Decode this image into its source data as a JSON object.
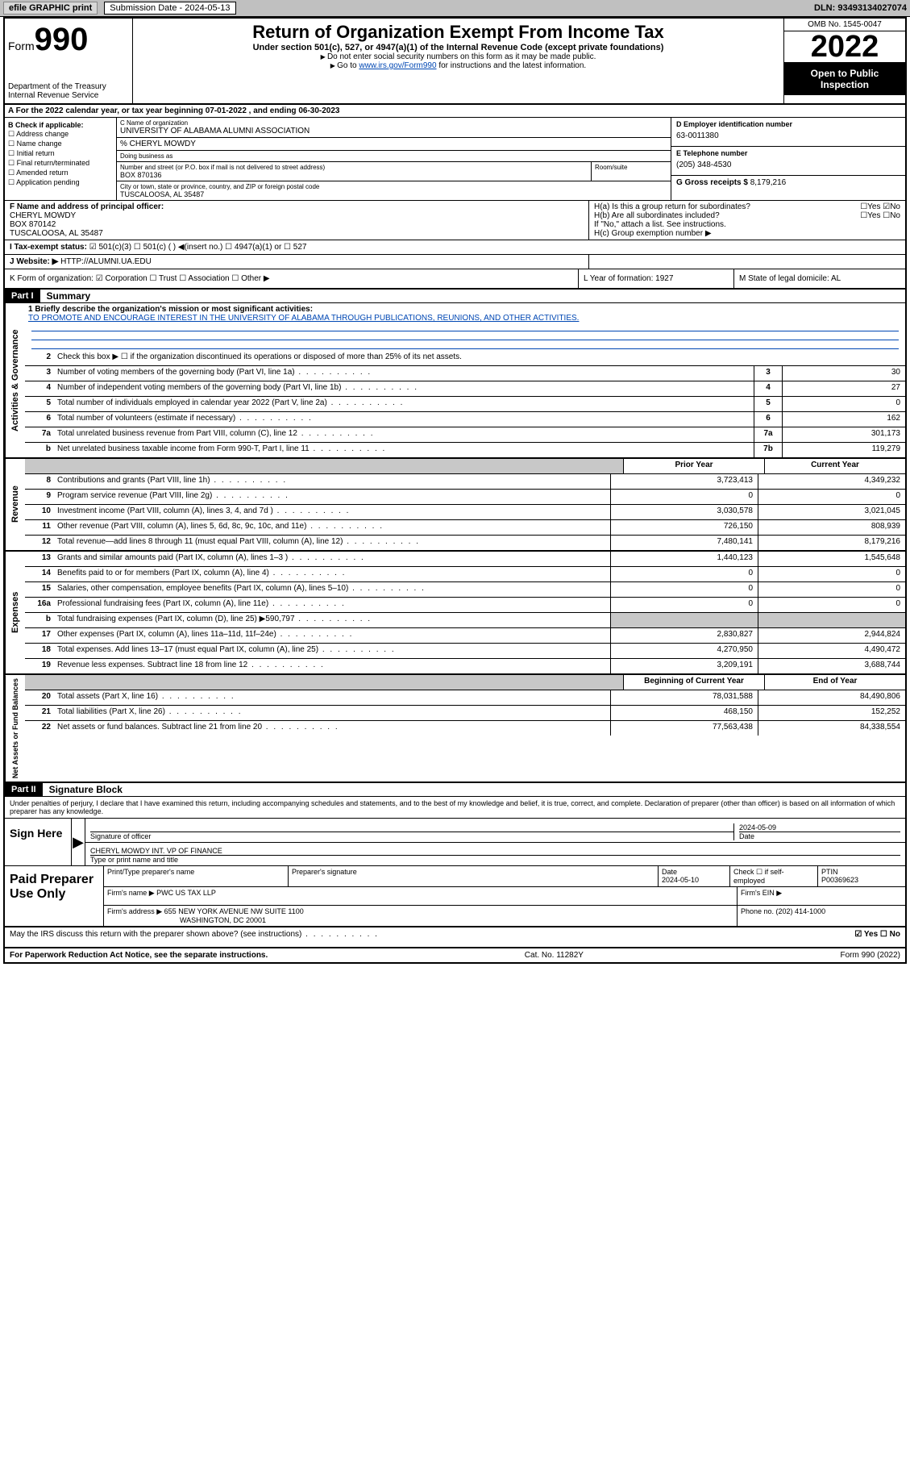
{
  "topbar": {
    "efile_label": "efile GRAPHIC print",
    "sub_date_label": "Submission Date - 2024-05-13",
    "dln": "DLN: 93493134027074"
  },
  "header": {
    "form_prefix": "Form",
    "form_num": "990",
    "dept": "Department of the Treasury",
    "irs": "Internal Revenue Service",
    "title": "Return of Organization Exempt From Income Tax",
    "sub": "Under section 501(c), 527, or 4947(a)(1) of the Internal Revenue Code (except private foundations)",
    "note1": "Do not enter social security numbers on this form as it may be made public.",
    "note2_pre": "Go to ",
    "note2_link": "www.irs.gov/Form990",
    "note2_post": " for instructions and the latest information.",
    "omb": "OMB No. 1545-0047",
    "year": "2022",
    "open1": "Open to Public",
    "open2": "Inspection"
  },
  "rowA": "A For the 2022 calendar year, or tax year beginning 07-01-2022  , and ending 06-30-2023",
  "colB": {
    "title": "B Check if applicable:",
    "items": [
      "Address change",
      "Name change",
      "Initial return",
      "Final return/terminated",
      "Amended return",
      "Application pending"
    ]
  },
  "colC": {
    "name_lbl": "C Name of organization",
    "name": "UNIVERSITY OF ALABAMA ALUMNI ASSOCIATION",
    "care_lbl": "% CHERYL MOWDY",
    "dba_lbl": "Doing business as",
    "addr_lbl": "Number and street (or P.O. box if mail is not delivered to street address)",
    "addr": "BOX 870136",
    "suite_lbl": "Room/suite",
    "city_lbl": "City or town, state or province, country, and ZIP or foreign postal code",
    "city": "TUSCALOOSA, AL  35487"
  },
  "colDE": {
    "d_lbl": "D Employer identification number",
    "d_val": "63-0011380",
    "e_lbl": "E Telephone number",
    "e_val": "(205) 348-4530",
    "g_lbl": "G Gross receipts $ ",
    "g_val": "8,179,216"
  },
  "rowF": {
    "lbl": "F Name and address of principal officer:",
    "name": "CHERYL MOWDY",
    "addr1": "BOX 870142",
    "addr2": "TUSCALOOSA, AL  35487"
  },
  "rowH": {
    "ha": "H(a)  Is this a group return for subordinates?",
    "ha_yn": "☐Yes ☑No",
    "hb": "H(b)  Are all subordinates included?",
    "hb_yn": "☐Yes ☐No",
    "hb_note": "If \"No,\" attach a list. See instructions.",
    "hc": "H(c)  Group exemption number ▶"
  },
  "rowI": {
    "lbl": "I   Tax-exempt status:",
    "opts": "☑ 501(c)(3)   ☐  501(c) (  ) ◀(insert no.)    ☐ 4947(a)(1) or  ☐ 527"
  },
  "rowJ": {
    "lbl": "J   Website: ▶  ",
    "val": "HTTP://ALUMNI.UA.EDU"
  },
  "rowK": "K Form of organization:  ☑ Corporation  ☐ Trust  ☐ Association  ☐ Other ▶",
  "rowL": "L Year of formation: 1927",
  "rowM": "M State of legal domicile: AL",
  "part1": {
    "hdr": "Part I",
    "title": "Summary"
  },
  "mission": {
    "lbl": "1  Briefly describe the organization's mission or most significant activities:",
    "text": "TO PROMOTE AND ENCOURAGE INTEREST IN THE UNIVERSITY OF ALABAMA THROUGH PUBLICATIONS, REUNIONS, AND OTHER ACTIVITIES."
  },
  "gov_lines": [
    {
      "n": "2",
      "t": "Check this box ▶ ☐  if the organization discontinued its operations or disposed of more than 25% of its net assets.",
      "box": "",
      "v": ""
    },
    {
      "n": "3",
      "t": "Number of voting members of the governing body (Part VI, line 1a)",
      "box": "3",
      "v": "30"
    },
    {
      "n": "4",
      "t": "Number of independent voting members of the governing body (Part VI, line 1b)",
      "box": "4",
      "v": "27"
    },
    {
      "n": "5",
      "t": "Total number of individuals employed in calendar year 2022 (Part V, line 2a)",
      "box": "5",
      "v": "0"
    },
    {
      "n": "6",
      "t": "Total number of volunteers (estimate if necessary)",
      "box": "6",
      "v": "162"
    },
    {
      "n": "7a",
      "t": "Total unrelated business revenue from Part VIII, column (C), line 12",
      "box": "7a",
      "v": "301,173"
    },
    {
      "n": "b",
      "t": "Net unrelated business taxable income from Form 990-T, Part I, line 11",
      "box": "7b",
      "v": "119,279"
    }
  ],
  "yr_hdr": {
    "c1": "Prior Year",
    "c2": "Current Year"
  },
  "rev_lines": [
    {
      "n": "8",
      "t": "Contributions and grants (Part VIII, line 1h)",
      "p": "3,723,413",
      "c": "4,349,232"
    },
    {
      "n": "9",
      "t": "Program service revenue (Part VIII, line 2g)",
      "p": "0",
      "c": "0"
    },
    {
      "n": "10",
      "t": "Investment income (Part VIII, column (A), lines 3, 4, and 7d )",
      "p": "3,030,578",
      "c": "3,021,045"
    },
    {
      "n": "11",
      "t": "Other revenue (Part VIII, column (A), lines 5, 6d, 8c, 9c, 10c, and 11e)",
      "p": "726,150",
      "c": "808,939"
    },
    {
      "n": "12",
      "t": "Total revenue—add lines 8 through 11 (must equal Part VIII, column (A), line 12)",
      "p": "7,480,141",
      "c": "8,179,216"
    }
  ],
  "exp_lines": [
    {
      "n": "13",
      "t": "Grants and similar amounts paid (Part IX, column (A), lines 1–3 )",
      "p": "1,440,123",
      "c": "1,545,648"
    },
    {
      "n": "14",
      "t": "Benefits paid to or for members (Part IX, column (A), line 4)",
      "p": "0",
      "c": "0"
    },
    {
      "n": "15",
      "t": "Salaries, other compensation, employee benefits (Part IX, column (A), lines 5–10)",
      "p": "0",
      "c": "0"
    },
    {
      "n": "16a",
      "t": "Professional fundraising fees (Part IX, column (A), line 11e)",
      "p": "0",
      "c": "0"
    },
    {
      "n": "b",
      "t": "Total fundraising expenses (Part IX, column (D), line 25) ▶590,797",
      "p": "shade",
      "c": "shade"
    },
    {
      "n": "17",
      "t": "Other expenses (Part IX, column (A), lines 11a–11d, 11f–24e)",
      "p": "2,830,827",
      "c": "2,944,824"
    },
    {
      "n": "18",
      "t": "Total expenses. Add lines 13–17 (must equal Part IX, column (A), line 25)",
      "p": "4,270,950",
      "c": "4,490,472"
    },
    {
      "n": "19",
      "t": "Revenue less expenses. Subtract line 18 from line 12",
      "p": "3,209,191",
      "c": "3,688,744"
    }
  ],
  "na_hdr": {
    "c1": "Beginning of Current Year",
    "c2": "End of Year"
  },
  "na_lines": [
    {
      "n": "20",
      "t": "Total assets (Part X, line 16)",
      "p": "78,031,588",
      "c": "84,490,806"
    },
    {
      "n": "21",
      "t": "Total liabilities (Part X, line 26)",
      "p": "468,150",
      "c": "152,252"
    },
    {
      "n": "22",
      "t": "Net assets or fund balances. Subtract line 21 from line 20",
      "p": "77,563,438",
      "c": "84,338,554"
    }
  ],
  "part2": {
    "hdr": "Part II",
    "title": "Signature Block"
  },
  "sig_decl": "Under penalties of perjury, I declare that I have examined this return, including accompanying schedules and statements, and to the best of my knowledge and belief, it is true, correct, and complete. Declaration of preparer (other than officer) is based on all information of which preparer has any knowledge.",
  "sign": {
    "here": "Sign Here",
    "sig_lbl": "Signature of officer",
    "date_val": "2024-05-09",
    "date_lbl": "Date",
    "name": "CHERYL MOWDY INT. VP OF FINANCE",
    "name_lbl": "Type or print name and title"
  },
  "prep": {
    "title": "Paid Preparer Use Only",
    "h1": "Print/Type preparer's name",
    "h2": "Preparer's signature",
    "h3_lbl": "Date",
    "h3": "2024-05-10",
    "h4": "Check ☐ if self-employed",
    "h5_lbl": "PTIN",
    "h5": "P00369623",
    "firm_lbl": "Firm's name    ▶",
    "firm": "PWC US TAX LLP",
    "ein_lbl": "Firm's EIN ▶",
    "addr_lbl": "Firm's address ▶",
    "addr1": "655 NEW YORK AVENUE NW SUITE 1100",
    "addr2": "WASHINGTON, DC  20001",
    "phone_lbl": "Phone no. ",
    "phone": "(202) 414-1000"
  },
  "discuss": {
    "q": "May the IRS discuss this return with the preparer shown above? (see instructions)",
    "a": "☑ Yes  ☐ No"
  },
  "footer": {
    "l": "For Paperwork Reduction Act Notice, see the separate instructions.",
    "m": "Cat. No. 11282Y",
    "r": "Form 990 (2022)"
  },
  "vtabs": {
    "gov": "Activities & Governance",
    "rev": "Revenue",
    "exp": "Expenses",
    "na": "Net Assets or Fund Balances"
  }
}
